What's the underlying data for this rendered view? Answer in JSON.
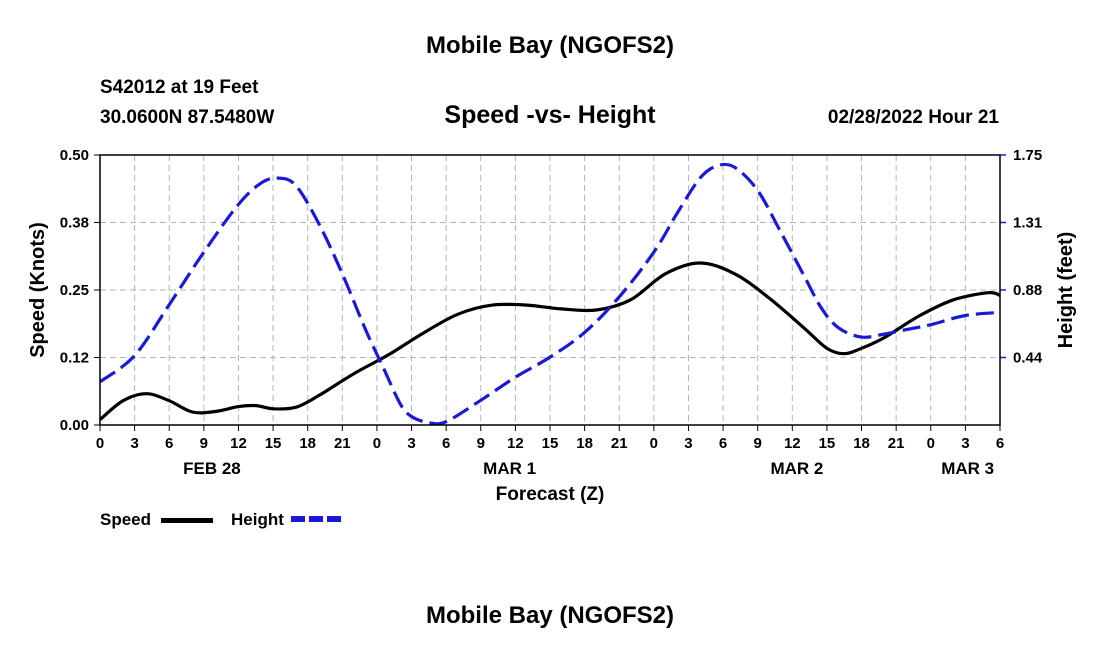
{
  "page_title": "Mobile Bay (NGOFS2)",
  "station": "S42012 at 19 Feet",
  "coords": "30.0600N  87.5480W",
  "subtitle": "Speed -vs- Height",
  "timestamp": "02/28/2022 Hour 21",
  "footer_title": "Mobile Bay (NGOFS2)",
  "colors": {
    "speed": "#000000",
    "height": "#1a1ad6",
    "grid": "#b4b4b4"
  },
  "chart_data": {
    "type": "line",
    "title": "Speed -vs- Height",
    "xlabel": "Forecast (Z)",
    "ylabel": "Speed (Knots)",
    "y2label": "Height (feet)",
    "x_range": [
      0,
      78
    ],
    "ylim": [
      0,
      0.5
    ],
    "y2lim": [
      0,
      1.75
    ],
    "x_tick_labels": [
      "0",
      "3",
      "6",
      "9",
      "12",
      "15",
      "18",
      "21",
      "0",
      "3",
      "6",
      "9",
      "12",
      "15",
      "18",
      "21",
      "0",
      "3",
      "6",
      "9",
      "12",
      "15",
      "18",
      "21",
      "0",
      "3",
      "6"
    ],
    "y_tick_labels": [
      "0.00",
      "0.12",
      "0.25",
      "0.38",
      "0.50"
    ],
    "y2_tick_labels": [
      "0.44",
      "0.88",
      "1.31",
      "1.75"
    ],
    "date_labels": [
      {
        "label": "FEB 28",
        "hour": 9.7
      },
      {
        "label": "MAR 1",
        "hour": 35.5
      },
      {
        "label": "MAR 2",
        "hour": 60.4
      },
      {
        "label": "MAR 3",
        "hour": 75.2
      }
    ],
    "grid": true,
    "legend": [
      {
        "name": "Speed",
        "style": "solid"
      },
      {
        "name": "Height",
        "style": "dashed"
      }
    ],
    "series": [
      {
        "name": "Speed",
        "axis": "left",
        "x": [
          0,
          2,
          4,
          6,
          8,
          10,
          12,
          13.5,
          15,
          17,
          19,
          22,
          25,
          28,
          31,
          34,
          37,
          40,
          43,
          46,
          49,
          52,
          55,
          58,
          61,
          63,
          64.5,
          66,
          68,
          71,
          74,
          77,
          78
        ],
        "values": [
          0.01,
          0.045,
          0.058,
          0.045,
          0.024,
          0.025,
          0.034,
          0.036,
          0.03,
          0.033,
          0.055,
          0.095,
          0.13,
          0.17,
          0.205,
          0.222,
          0.222,
          0.215,
          0.213,
          0.232,
          0.28,
          0.3,
          0.28,
          0.235,
          0.18,
          0.142,
          0.132,
          0.142,
          0.162,
          0.202,
          0.232,
          0.245,
          0.24
        ]
      },
      {
        "name": "Height",
        "axis": "right",
        "x": [
          0,
          3,
          6,
          9,
          12,
          14,
          15.5,
          17,
          19,
          21,
          23,
          24.5,
          26,
          27,
          28.5,
          30,
          33,
          36,
          39,
          42,
          45,
          48,
          50,
          52,
          53.5,
          55,
          57,
          59,
          61,
          62.5,
          64,
          66,
          68,
          70,
          72,
          75,
          78
        ],
        "values": [
          0.28,
          0.45,
          0.78,
          1.12,
          1.43,
          1.57,
          1.6,
          1.55,
          1.3,
          0.98,
          0.62,
          0.38,
          0.14,
          0.055,
          0.015,
          0.022,
          0.16,
          0.31,
          0.44,
          0.6,
          0.83,
          1.12,
          1.37,
          1.6,
          1.68,
          1.67,
          1.52,
          1.25,
          0.97,
          0.76,
          0.63,
          0.57,
          0.59,
          0.62,
          0.65,
          0.71,
          0.73
        ]
      }
    ]
  }
}
